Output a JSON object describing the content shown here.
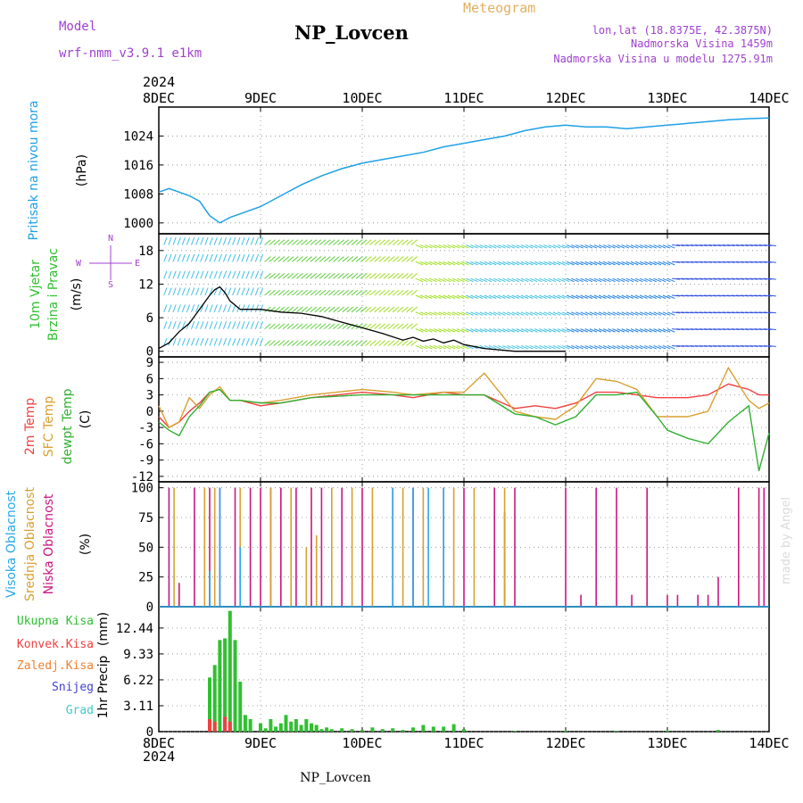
{
  "header": {
    "model_label": "Model",
    "model_name": "wrf-nmm_v3.9.1 e1km",
    "station": "NP_Lovcen",
    "meteogram_label": "Meteogram",
    "lonlat": "lon,lat (18.8375E, 42.3875N)",
    "altitude": "Nadmorska Visina 1459m",
    "model_altitude": "Nadmorska Visina u modelu 1275.91m",
    "year_top": "2024",
    "year_bottom": "2024",
    "footer_station": "NP_Lovcen",
    "watermark": "made by Angel"
  },
  "colors": {
    "pressure": "#1ea0e6",
    "wind_speed": "#000000",
    "temp_2m": "#f04040",
    "temp_sfc": "#d8a030",
    "dewpoint": "#30b030",
    "cloud_high": "#28a8e8",
    "cloud_mid": "#d8a030",
    "cloud_low": "#c81880",
    "rain_total": "#30c030",
    "rain_conv": "#f04040",
    "freezing_rain": "#f08030",
    "snow": "#4040d0",
    "graupel": "#40c8c8",
    "title_purple": "#a040d0",
    "meteogram_orange": "#e0b060"
  },
  "chart_data": [
    {
      "type": "line",
      "panel": "pressure",
      "xlabel_ticks": [
        "8DEC",
        "9DEC",
        "10DEC",
        "11DEC",
        "12DEC",
        "13DEC",
        "14DEC"
      ],
      "ylabel": "Pritisak na nivou mora",
      "yunit": "(hPa)",
      "yticks": [
        "1000",
        "1008",
        "1016",
        "1024"
      ],
      "ylim": [
        997,
        1032
      ],
      "series": [
        {
          "x": [
            0,
            0.1,
            0.2,
            0.3,
            0.4,
            0.5,
            0.6,
            0.7,
            0.8,
            0.9,
            1.0,
            1.2,
            1.4,
            1.6,
            1.8,
            2.0,
            2.2,
            2.4,
            2.6,
            2.8,
            3.0,
            3.2,
            3.4,
            3.6,
            3.8,
            4.0,
            4.2,
            4.4,
            4.6,
            4.8,
            5.0,
            5.2,
            5.4,
            5.6,
            5.8,
            6.0
          ],
          "values": [
            1008.5,
            1009.5,
            1008.5,
            1007.5,
            1006,
            1002,
            1000,
            1001.5,
            1002.5,
            1003.5,
            1004.5,
            1007.5,
            1010.5,
            1013,
            1015,
            1016.5,
            1017.5,
            1018.5,
            1019.5,
            1021,
            1022,
            1023,
            1024,
            1025.5,
            1026.5,
            1027,
            1026.5,
            1026.5,
            1026,
            1026.5,
            1027,
            1027.5,
            1028,
            1028.5,
            1028.8,
            1029
          ]
        }
      ]
    },
    {
      "type": "line",
      "panel": "wind",
      "ylabel": "10m Vjetar",
      "ylabel2": "Brzina i Pravac",
      "yunit": "(m/s)",
      "yticks": [
        "0",
        "6",
        "12",
        "18"
      ],
      "ylim": [
        -1,
        21
      ],
      "compass": [
        "N",
        "S",
        "W",
        "E"
      ],
      "series": [
        {
          "name": "speed",
          "x": [
            0,
            0.1,
            0.2,
            0.3,
            0.4,
            0.5,
            0.55,
            0.6,
            0.65,
            0.7,
            0.8,
            0.9,
            1.0,
            1.2,
            1.4,
            1.6,
            1.8,
            2.0,
            2.2,
            2.4,
            2.5,
            2.6,
            2.7,
            2.8,
            2.9,
            3.0,
            3.2,
            3.5,
            4.0
          ],
          "values": [
            0.5,
            1.5,
            3.5,
            5,
            7.5,
            10,
            11,
            11.5,
            10.5,
            9,
            7.5,
            7.5,
            7.5,
            7,
            6.8,
            6.2,
            5.2,
            4.2,
            3.2,
            2,
            2.5,
            1.8,
            2.2,
            1.5,
            2,
            1.2,
            0.5,
            0,
            0
          ]
        }
      ]
    },
    {
      "type": "line",
      "panel": "temperature",
      "ylabel_t2": "2m Temp",
      "ylabel_sfc": "SFC Temp",
      "ylabel_dew": "dewpt Temp",
      "yunit": "(C)",
      "yticks": [
        "-12",
        "-9",
        "-6",
        "-3",
        "0",
        "3",
        "6",
        "9"
      ],
      "ylim": [
        -13,
        10
      ],
      "x": [
        0,
        0.1,
        0.2,
        0.3,
        0.4,
        0.5,
        0.6,
        0.7,
        0.8,
        1.0,
        1.2,
        1.5,
        2.0,
        2.3,
        2.5,
        2.8,
        3.0,
        3.2,
        3.5,
        3.7,
        3.9,
        4.1,
        4.3,
        4.5,
        4.7,
        4.9,
        5.0,
        5.2,
        5.4,
        5.6,
        5.8,
        5.9,
        6.0
      ],
      "series": [
        {
          "name": "2m Temp",
          "values": [
            -1,
            -3,
            -2,
            0,
            1.5,
            3.5,
            4,
            2,
            2,
            1,
            1.5,
            2.5,
            3.5,
            3,
            2.5,
            3.5,
            3,
            3,
            0.5,
            1,
            0.5,
            1.5,
            3.5,
            3.5,
            3,
            2.5,
            2.5,
            2.5,
            3,
            5,
            4,
            3,
            3
          ]
        },
        {
          "name": "SFC Temp",
          "values": [
            1,
            -3,
            -2,
            2.5,
            0.5,
            3,
            4.5,
            2,
            2,
            1.5,
            2,
            3,
            4,
            3.5,
            3,
            3.5,
            3.5,
            7,
            0,
            -1,
            -1.5,
            1,
            6,
            5.5,
            4,
            -1,
            -1,
            -1,
            0,
            8,
            2,
            0.5,
            1.5
          ]
        },
        {
          "name": "dewpt Temp",
          "values": [
            -2,
            -3.5,
            -4.5,
            -1,
            1,
            3.5,
            4,
            2,
            2,
            1.5,
            1.5,
            2.5,
            3,
            3,
            3,
            3,
            3,
            3,
            -0.5,
            -1,
            -2.5,
            -1,
            3,
            3,
            3.5,
            -1,
            -3.5,
            -5,
            -6,
            -2,
            1,
            -11,
            -4
          ]
        }
      ]
    },
    {
      "type": "bar",
      "panel": "clouds",
      "ylabel_high": "Visoka Oblacnost",
      "ylabel_mid": "Srednja Oblacnost",
      "ylabel_low": "Niska Oblacnost",
      "yunit": "(%)",
      "yticks": [
        "0",
        "25",
        "50",
        "75",
        "100"
      ],
      "ylim": [
        0,
        105
      ],
      "series": [
        {
          "name": "Niska Oblacnost",
          "x": [
            0.1,
            0.2,
            0.35,
            0.5,
            0.6,
            0.75,
            0.9,
            1.0,
            1.1,
            1.2,
            1.35,
            1.5,
            1.6,
            1.8,
            2.0,
            2.3,
            2.5,
            2.8,
            3.0,
            3.3,
            3.4,
            3.5,
            4.0,
            4.15,
            4.3,
            4.5,
            4.65,
            4.8,
            5.0,
            5.1,
            5.3,
            5.4,
            5.5,
            5.7,
            5.9,
            5.95
          ],
          "values": [
            100,
            20,
            100,
            100,
            100,
            100,
            100,
            100,
            100,
            100,
            100,
            100,
            100,
            100,
            100,
            100,
            100,
            100,
            100,
            100,
            80,
            100,
            100,
            10,
            100,
            100,
            10,
            100,
            10,
            10,
            10,
            10,
            25,
            100,
            100,
            100
          ]
        },
        {
          "name": "Srednja Oblacnost",
          "x": [
            0.15,
            0.45,
            0.55,
            0.8,
            1.1,
            1.3,
            1.45,
            1.55,
            1.7,
            1.9,
            2.1,
            2.4,
            2.6,
            2.9,
            3.1,
            3.4
          ],
          "values": [
            100,
            100,
            100,
            100,
            100,
            100,
            50,
            60,
            100,
            100,
            100,
            100,
            100,
            100,
            100,
            100
          ]
        },
        {
          "name": "Visoka Oblacnost",
          "x": [
            0.5,
            0.6,
            0.8,
            2.3,
            2.5,
            2.65,
            2.8
          ],
          "values": [
            30,
            100,
            50,
            100,
            100,
            100,
            100
          ]
        }
      ]
    },
    {
      "type": "bar",
      "panel": "precip",
      "ylabel": "1hr Precip",
      "yunit": "(mm)",
      "yticks": [
        "0",
        "3.11",
        "6.22",
        "9.33",
        "12.44"
      ],
      "ylim": [
        0,
        15
      ],
      "legend": [
        "Ukupna Kisa",
        "Konvek.Kisa",
        "Zaledj.Kisa",
        "Snijeg",
        "Grad"
      ],
      "series": [
        {
          "name": "Ukupna Kisa",
          "x": [
            0.5,
            0.55,
            0.6,
            0.65,
            0.7,
            0.75,
            0.8,
            0.85,
            0.9,
            1.0,
            1.05,
            1.1,
            1.15,
            1.2,
            1.25,
            1.3,
            1.35,
            1.4,
            1.45,
            1.5,
            1.55,
            1.6,
            1.65,
            1.7,
            1.8,
            1.9,
            2.0,
            2.1,
            2.2,
            2.3,
            2.4,
            2.5,
            2.6,
            2.7,
            2.8,
            2.9,
            3.0,
            3.5,
            4.0,
            4.5,
            5.0,
            5.5
          ],
          "values": [
            6.5,
            8,
            11,
            11.2,
            14.5,
            11,
            6,
            2,
            1.5,
            1,
            0.4,
            1.5,
            0.6,
            1,
            2,
            1.2,
            1.5,
            0.8,
            1.5,
            1,
            0.8,
            0.3,
            0.5,
            0.3,
            0.4,
            0.3,
            0.2,
            0.5,
            0.3,
            0.4,
            0.2,
            0.5,
            0.8,
            0.6,
            0.6,
            0.9,
            0.3,
            0.1,
            0.1,
            0.1,
            0.1,
            0.2
          ]
        },
        {
          "name": "Konvek.Kisa",
          "x": [
            0.5,
            0.55,
            0.65,
            0.7
          ],
          "values": [
            1.5,
            1.2,
            1.8,
            1.2
          ]
        }
      ]
    }
  ]
}
